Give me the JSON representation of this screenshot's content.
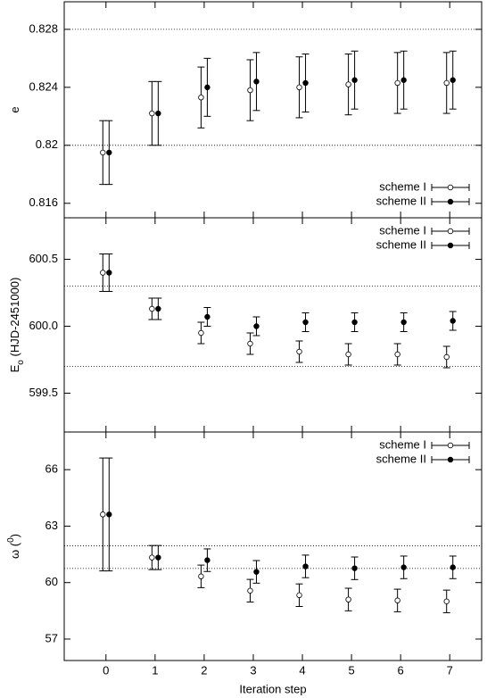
{
  "chart_data": [
    {
      "type": "errorbar",
      "ylabel": [
        "e"
      ],
      "ylim": [
        0.815,
        0.8299
      ],
      "yticks": [
        0.816,
        0.82,
        0.824,
        0.828
      ],
      "xlim": [
        -0.85,
        7.65
      ],
      "xticks": [
        0,
        1,
        2,
        3,
        4,
        5,
        6,
        7
      ],
      "xtick_labels": false,
      "reference_lines": [
        0.828,
        0.82
      ],
      "legend": "lower right",
      "x": [
        0,
        1,
        2,
        3,
        4,
        5,
        6,
        7
      ],
      "series": [
        {
          "name": "scheme I",
          "color": "#000000",
          "marker": "open",
          "values": [
            0.8195,
            0.8222,
            0.8233,
            0.8238,
            0.824,
            0.8242,
            0.8243,
            0.8243
          ],
          "errors": [
            0.0022,
            0.0022,
            0.0021,
            0.0021,
            0.0021,
            0.0021,
            0.0021,
            0.0021
          ]
        },
        {
          "name": "scheme II",
          "color": "#000000",
          "marker": "filled",
          "values": [
            0.8195,
            0.8222,
            0.824,
            0.8244,
            0.8243,
            0.8245,
            0.8245,
            0.8245
          ],
          "errors": [
            0.0022,
            0.0022,
            0.002,
            0.002,
            0.002,
            0.002,
            0.002,
            0.002
          ]
        }
      ]
    },
    {
      "type": "errorbar",
      "ylabel": [
        "E",
        "o",
        " (HJD-2451000)"
      ],
      "ylabel_script": "sub",
      "ylim": [
        599.21,
        600.81
      ],
      "yticks": [
        599.5,
        {
          "value": 600,
          "label": "600.0"
        },
        600.5
      ],
      "xlim": [
        -0.85,
        7.65
      ],
      "xticks": [
        0,
        1,
        2,
        3,
        4,
        5,
        6,
        7
      ],
      "xtick_labels": false,
      "reference_lines": [
        600.3,
        599.7
      ],
      "legend": "upper right",
      "x": [
        0,
        1,
        2,
        3,
        4,
        5,
        6,
        7
      ],
      "series": [
        {
          "name": "scheme I",
          "color": "#000000",
          "marker": "open",
          "values": [
            600.4,
            600.13,
            599.95,
            599.87,
            599.81,
            599.79,
            599.79,
            599.77
          ],
          "errors": [
            0.14,
            0.08,
            0.08,
            0.08,
            0.08,
            0.08,
            0.08,
            0.08
          ]
        },
        {
          "name": "scheme II",
          "color": "#000000",
          "marker": "filled",
          "values": [
            600.4,
            600.13,
            600.07,
            600.0,
            600.03,
            600.03,
            600.03,
            600.04
          ],
          "errors": [
            0.14,
            0.08,
            0.07,
            0.07,
            0.07,
            0.07,
            0.07,
            0.07
          ]
        }
      ]
    },
    {
      "type": "errorbar",
      "ylabel": [
        "ω (",
        "0",
        ")"
      ],
      "ylabel_script": "super",
      "ylim": [
        55.86,
        68.0
      ],
      "yticks": [
        57,
        60,
        63,
        66
      ],
      "xlim": [
        -0.85,
        7.65
      ],
      "xticks": [
        0,
        1,
        2,
        3,
        4,
        5,
        6,
        7
      ],
      "xtick_labels": true,
      "xlabel": "Iteration step",
      "reference_lines": [
        61.95,
        60.75
      ],
      "legend": "upper right",
      "x": [
        0,
        1,
        2,
        3,
        4,
        5,
        6,
        7
      ],
      "series": [
        {
          "name": "scheme I",
          "color": "#000000",
          "marker": "open",
          "values": [
            63.62,
            61.33,
            60.33,
            59.57,
            59.33,
            59.1,
            59.05,
            59.0
          ],
          "errors": [
            3.0,
            0.64,
            0.6,
            0.6,
            0.6,
            0.6,
            0.6,
            0.6
          ]
        },
        {
          "name": "scheme II",
          "color": "#000000",
          "marker": "filled",
          "values": [
            63.62,
            61.33,
            61.19,
            60.57,
            60.86,
            60.76,
            60.81,
            60.81
          ],
          "errors": [
            3.0,
            0.64,
            0.6,
            0.6,
            0.6,
            0.6,
            0.6,
            0.6
          ]
        }
      ]
    }
  ]
}
